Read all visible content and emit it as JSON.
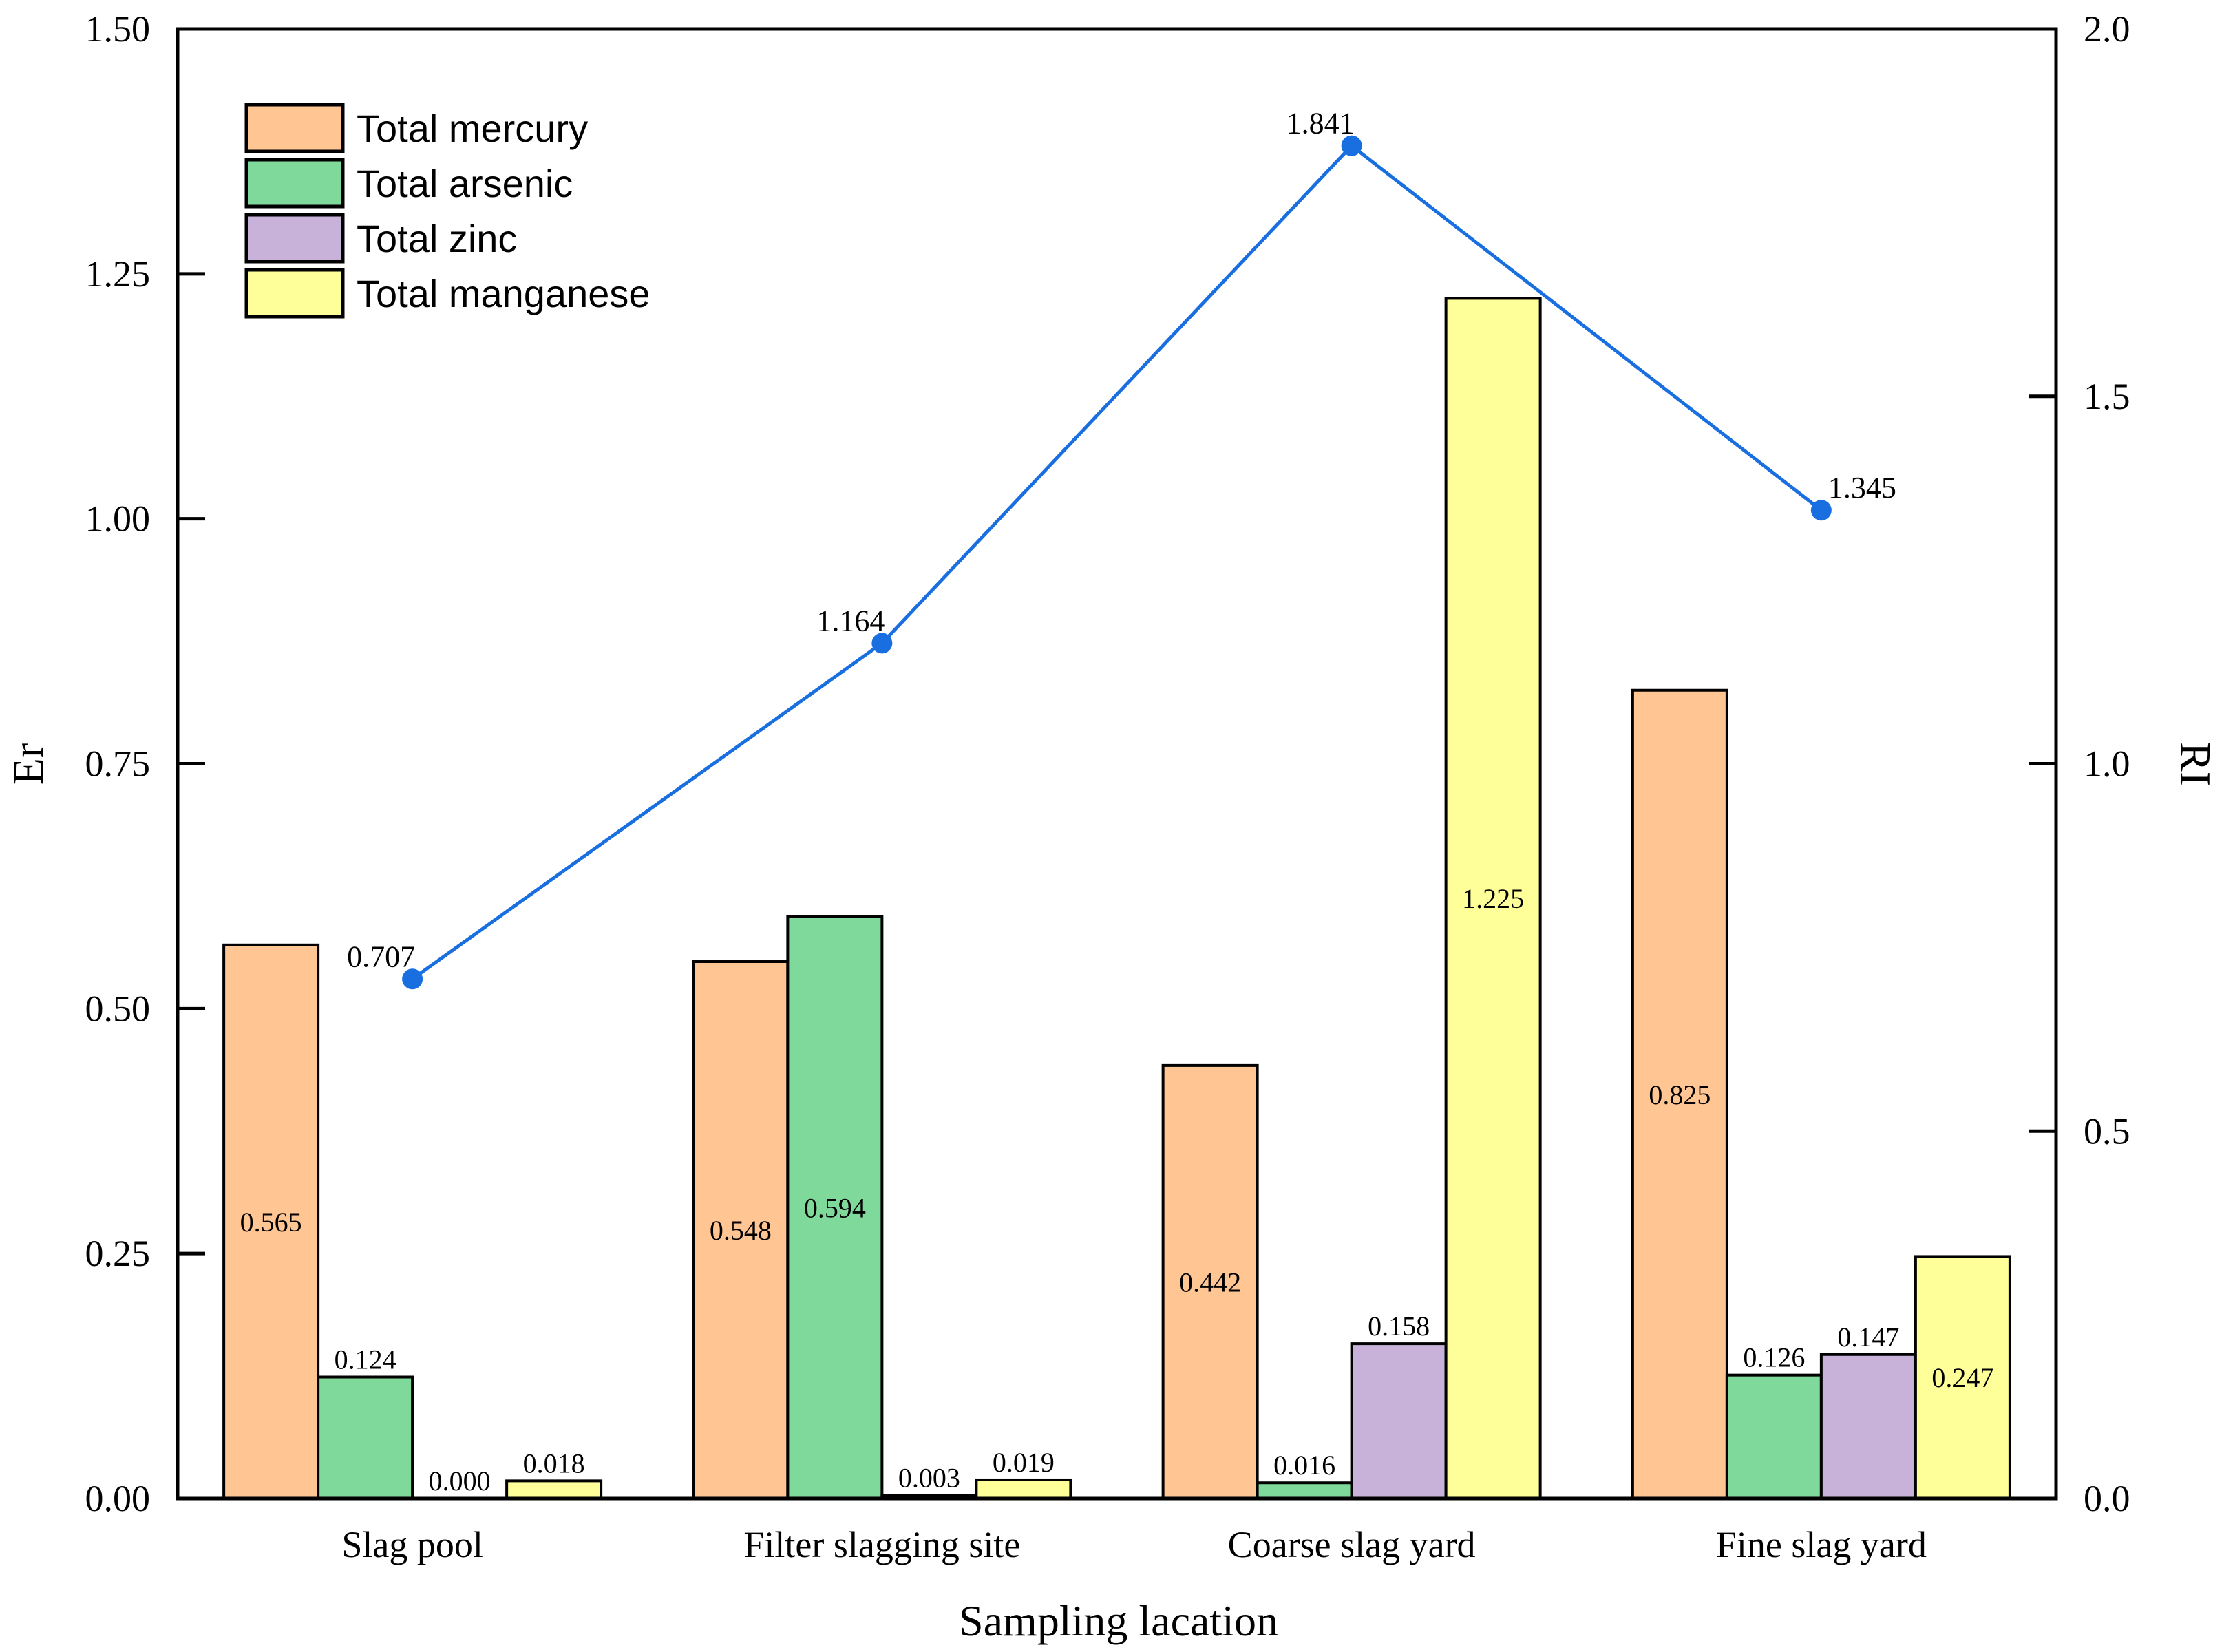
{
  "chart_data": {
    "type": "bar",
    "xlabel": "Sampling lacation",
    "ylabel": "Er",
    "y2label": "RI",
    "ylim": [
      0,
      1.5
    ],
    "yticks": [
      "0.00",
      "0.25",
      "0.50",
      "0.75",
      "1.00",
      "1.25",
      "1.50"
    ],
    "y2lim": [
      0,
      2.0
    ],
    "y2ticks": [
      "0.0",
      "0.5",
      "1.0",
      "1.5",
      "2.0"
    ],
    "categories": [
      "Slag pool",
      "Filter slagging site",
      "Coarse slag yard",
      "Fine slag yard"
    ],
    "legend_position": "top-left",
    "series": [
      {
        "name": "Total mercury",
        "color": "#FFC592",
        "values": [
          0.565,
          0.548,
          0.442,
          0.825
        ],
        "labels": [
          "0.565",
          "0.548",
          "0.442",
          "0.825"
        ],
        "label_inside": true
      },
      {
        "name": "Total arsenic",
        "color": "#7FD99A",
        "values": [
          0.124,
          0.594,
          0.016,
          0.126
        ],
        "labels": [
          "0.124",
          "0.594",
          "0.016",
          "0.126"
        ],
        "label_inside": false
      },
      {
        "name": "Total zinc",
        "color": "#C9B2D9",
        "values": [
          0.0,
          0.003,
          0.158,
          0.147
        ],
        "labels": [
          "0.000",
          "0.003",
          "0.158",
          "0.147"
        ],
        "label_inside": false
      },
      {
        "name": "Total manganese",
        "color": "#FFFF99",
        "values": [
          0.018,
          0.019,
          1.225,
          0.247
        ],
        "labels": [
          "0.018",
          "0.019",
          "1.225",
          "0.247"
        ],
        "label_inside": false
      }
    ],
    "line_series": {
      "name": "RI",
      "axis": "right",
      "color": "#1A6FE0",
      "values": [
        0.707,
        1.164,
        1.841,
        1.345
      ],
      "labels": [
        "0.707",
        "1.164",
        "1.841",
        "1.345"
      ]
    }
  }
}
